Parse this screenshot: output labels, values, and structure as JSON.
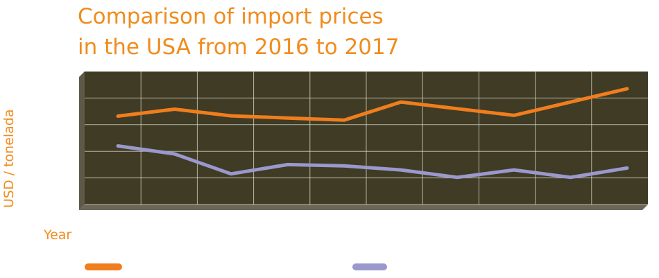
{
  "chart_data": {
    "type": "line",
    "title_lines": [
      "Comparison of import prices",
      "in the USA from 2016 to 2017"
    ],
    "xlabel": "Year",
    "ylabel": "USD / tonelada",
    "ylim": [
      0,
      5
    ],
    "grid": true,
    "x": [
      1,
      2,
      3,
      4,
      5,
      6,
      7,
      8,
      9,
      10
    ],
    "series": [
      {
        "color": "#f07d1e",
        "values": [
          3.32,
          3.58,
          3.33,
          3.25,
          3.17,
          3.85,
          3.6,
          3.35,
          3.85,
          4.35
        ]
      },
      {
        "color": "#9a98cc",
        "values": [
          2.2,
          1.9,
          1.15,
          1.5,
          1.45,
          1.3,
          1.02,
          1.3,
          1.02,
          1.37
        ]
      }
    ]
  },
  "colors": {
    "plot_bg": "#3f3b24",
    "grid": "#e0ddd0",
    "accent": "#f08c1e"
  }
}
